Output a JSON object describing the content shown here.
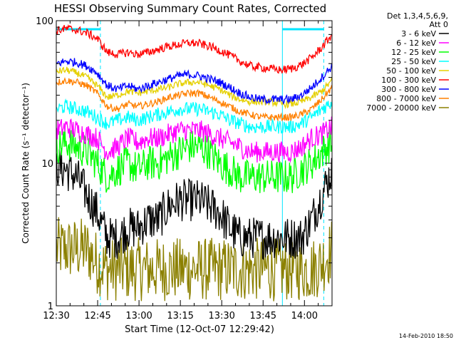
{
  "chart_data": {
    "type": "line",
    "title": "HESSI Observing Summary Count Rates, Corrected",
    "xlabel": "Start Time (12-Oct-07 12:29:42)",
    "ylabel": "Corrected Count Rate (s⁻¹ detector⁻¹)",
    "y_scale": "log",
    "ylim": [
      1,
      100
    ],
    "xlim_minutes": [
      0,
      100
    ],
    "x_ticks": [
      "12:30",
      "12:45",
      "13:00",
      "13:15",
      "13:30",
      "13:45",
      "14:00"
    ],
    "x_tick_minutes": [
      0,
      15,
      30,
      45,
      60,
      75,
      90
    ],
    "y_ticks": [
      "1",
      "10",
      "100"
    ],
    "y_tick_values": [
      1,
      10,
      100
    ],
    "legend_header": [
      "Det 1,3,4,5,6,9,",
      "Att 0"
    ],
    "legend_placement": "right",
    "footer_date": "14-Feb-2010 18:50",
    "night_boundaries_minutes": [
      0,
      16,
      82,
      97
    ],
    "series": [
      {
        "name": "3 - 6 keV",
        "color": "#000000",
        "noise": 0.3,
        "values": [
          9.5,
          9,
          8,
          6,
          4.5,
          3,
          3,
          3.5,
          3.5,
          4,
          4,
          5,
          5.5,
          5.5,
          5.5,
          5,
          4.5,
          3.5,
          3,
          3,
          3,
          3,
          3,
          3,
          3,
          4,
          6,
          9
        ]
      },
      {
        "name": "6 - 12 keV",
        "color": "#ff00ff",
        "noise": 0.15,
        "values": [
          17,
          18,
          17,
          16,
          15,
          12,
          13,
          15,
          14,
          15,
          15,
          16,
          17,
          17,
          17,
          16,
          15,
          14,
          13,
          12,
          12,
          12,
          12,
          12,
          13,
          15,
          16,
          18
        ]
      },
      {
        "name": "12 - 25 keV",
        "color": "#00ff00",
        "noise": 0.25,
        "values": [
          13,
          14,
          13,
          12,
          10,
          8,
          9,
          10,
          9,
          10,
          10,
          11,
          12,
          13,
          13,
          12,
          10,
          9,
          8,
          8,
          8,
          8,
          8,
          8,
          9,
          10,
          12,
          14
        ]
      },
      {
        "name": "25 - 50 keV",
        "color": "#00ffff",
        "noise": 0.1,
        "values": [
          24,
          25,
          24,
          23,
          21,
          19,
          20,
          21,
          20,
          21,
          22,
          23,
          24,
          24,
          24,
          23,
          22,
          20,
          19,
          18,
          18,
          18,
          18,
          18,
          19,
          21,
          24,
          27
        ]
      },
      {
        "name": "50 - 100 keV",
        "color": "#e5d000",
        "noise": 0.05,
        "values": [
          44,
          45,
          43,
          40,
          35,
          29,
          30,
          32,
          31,
          32,
          33,
          34,
          36,
          37,
          37,
          35,
          33,
          30,
          28,
          27,
          27,
          27,
          26,
          26,
          27,
          29,
          32,
          38
        ]
      },
      {
        "name": "100 - 300 keV",
        "color": "#ff0000",
        "noise": 0.06,
        "values": [
          85,
          88,
          86,
          82,
          75,
          60,
          58,
          60,
          58,
          60,
          63,
          66,
          68,
          70,
          69,
          66,
          62,
          57,
          52,
          48,
          47,
          46,
          45,
          46,
          49,
          55,
          65,
          80
        ]
      },
      {
        "name": "300 - 800 keV",
        "color": "#0000ff",
        "noise": 0.06,
        "values": [
          50,
          52,
          51,
          48,
          43,
          35,
          33,
          35,
          33,
          35,
          37,
          39,
          41,
          42,
          41,
          39,
          37,
          34,
          31,
          29,
          28,
          28,
          28,
          28,
          30,
          34,
          40,
          48
        ]
      },
      {
        "name": "800 - 7000 keV",
        "color": "#ff8000",
        "noise": 0.05,
        "values": [
          37,
          38,
          37,
          35,
          31,
          25,
          24,
          26,
          25,
          26,
          27,
          29,
          30,
          31,
          31,
          29,
          27,
          25,
          23,
          22,
          21,
          21,
          21,
          21,
          22,
          24,
          28,
          34
        ]
      },
      {
        "name": "7000 - 20000 keV",
        "color": "#8b8000",
        "noise": 0.45,
        "values": [
          2.5,
          2.5,
          2.5,
          2.5,
          2,
          1.8,
          1.8,
          1.8,
          1.8,
          1.8,
          1.8,
          1.8,
          1.8,
          1.8,
          1.8,
          1.8,
          1.8,
          1.8,
          1.8,
          1.8,
          1.8,
          1.8,
          1.8,
          1.8,
          1.8,
          1.8,
          2,
          2.5
        ]
      }
    ]
  }
}
